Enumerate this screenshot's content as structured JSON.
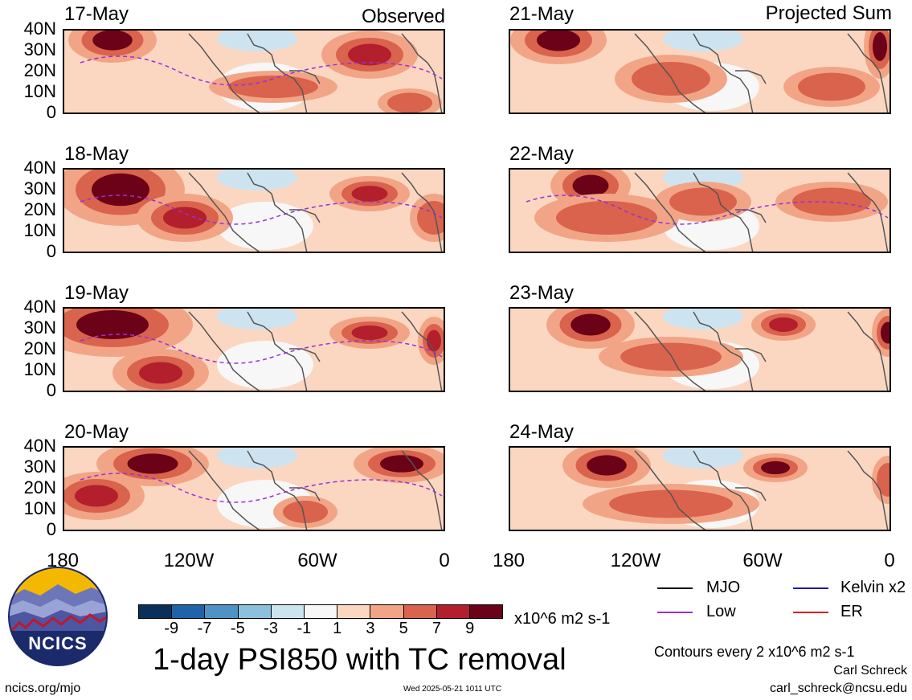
{
  "left_header": "Observed",
  "right_header": "Projected Sum",
  "observed_dates": [
    "17-May",
    "18-May",
    "19-May",
    "20-May"
  ],
  "projected_dates": [
    "21-May",
    "22-May",
    "23-May",
    "24-May"
  ],
  "lat_labels": [
    "40N",
    "30N",
    "20N",
    "10N",
    "0"
  ],
  "lon_labels": [
    "180",
    "120W",
    "60W",
    "0"
  ],
  "colorbar": {
    "colors": [
      "#0b2f5b",
      "#1f63a8",
      "#4f93c6",
      "#8cc1dd",
      "#cde4f0",
      "#f7f7f7",
      "#fbd7c2",
      "#f2a586",
      "#d9634c",
      "#b31f2d",
      "#6b0217"
    ],
    "tick_labels": [
      "-9",
      "-7",
      "-5",
      "-3",
      "-1",
      "1",
      "3",
      "5",
      "7",
      "9"
    ],
    "units": "x10^6 m2 s-1"
  },
  "title": "1-day PSI850 with TC removal",
  "legend": [
    {
      "label": "MJO",
      "color": "#000000"
    },
    {
      "label": "Kelvin x2",
      "color": "#1a1ab0"
    },
    {
      "label": "Low",
      "color": "#9b30d8"
    },
    {
      "label": "ER",
      "color": "#e0201a"
    }
  ],
  "contour_note": "Contours every 2 x10^6 m2 s-1",
  "author": "Carl Schreck",
  "email": "carl_schreck@ncsu.edu",
  "website": "ncics.org/mjo",
  "timestamp": "Wed 2025-05-21 1011 UTC",
  "logo_text": "NCICS"
}
